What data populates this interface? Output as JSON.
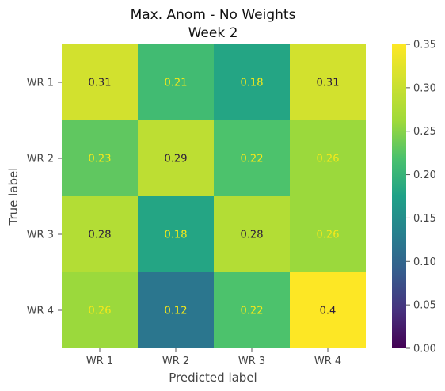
{
  "chart_data": {
    "type": "heatmap",
    "title_line1": "Max. Anom - No Weights",
    "title_line2": "Week 2",
    "xlabel": "Predicted label",
    "ylabel": "True label",
    "x_categories": [
      "WR 1",
      "WR 2",
      "WR 3",
      "WR 4"
    ],
    "y_categories": [
      "WR 1",
      "WR 2",
      "WR 3",
      "WR 4"
    ],
    "values": [
      [
        0.31,
        0.21,
        0.18,
        0.31
      ],
      [
        0.23,
        0.29,
        0.22,
        0.26
      ],
      [
        0.28,
        0.18,
        0.28,
        0.26
      ],
      [
        0.26,
        0.12,
        0.22,
        0.4
      ]
    ],
    "cell_labels": [
      [
        "0.31",
        "0.21",
        "0.18",
        "0.31"
      ],
      [
        "0.23",
        "0.29",
        "0.22",
        "0.26"
      ],
      [
        "0.28",
        "0.18",
        "0.28",
        "0.26"
      ],
      [
        "0.26",
        "0.12",
        "0.22",
        "0.4"
      ]
    ],
    "colormap": "viridis",
    "color_range": [
      0,
      0.35
    ],
    "colorbar_ticks": [
      "0.00",
      "0.05",
      "0.10",
      "0.15",
      "0.20",
      "0.25",
      "0.30",
      "0.35"
    ],
    "label_colors": {
      "dark": "#2b1c3a",
      "light": "#f5e81a"
    },
    "grid": false
  }
}
